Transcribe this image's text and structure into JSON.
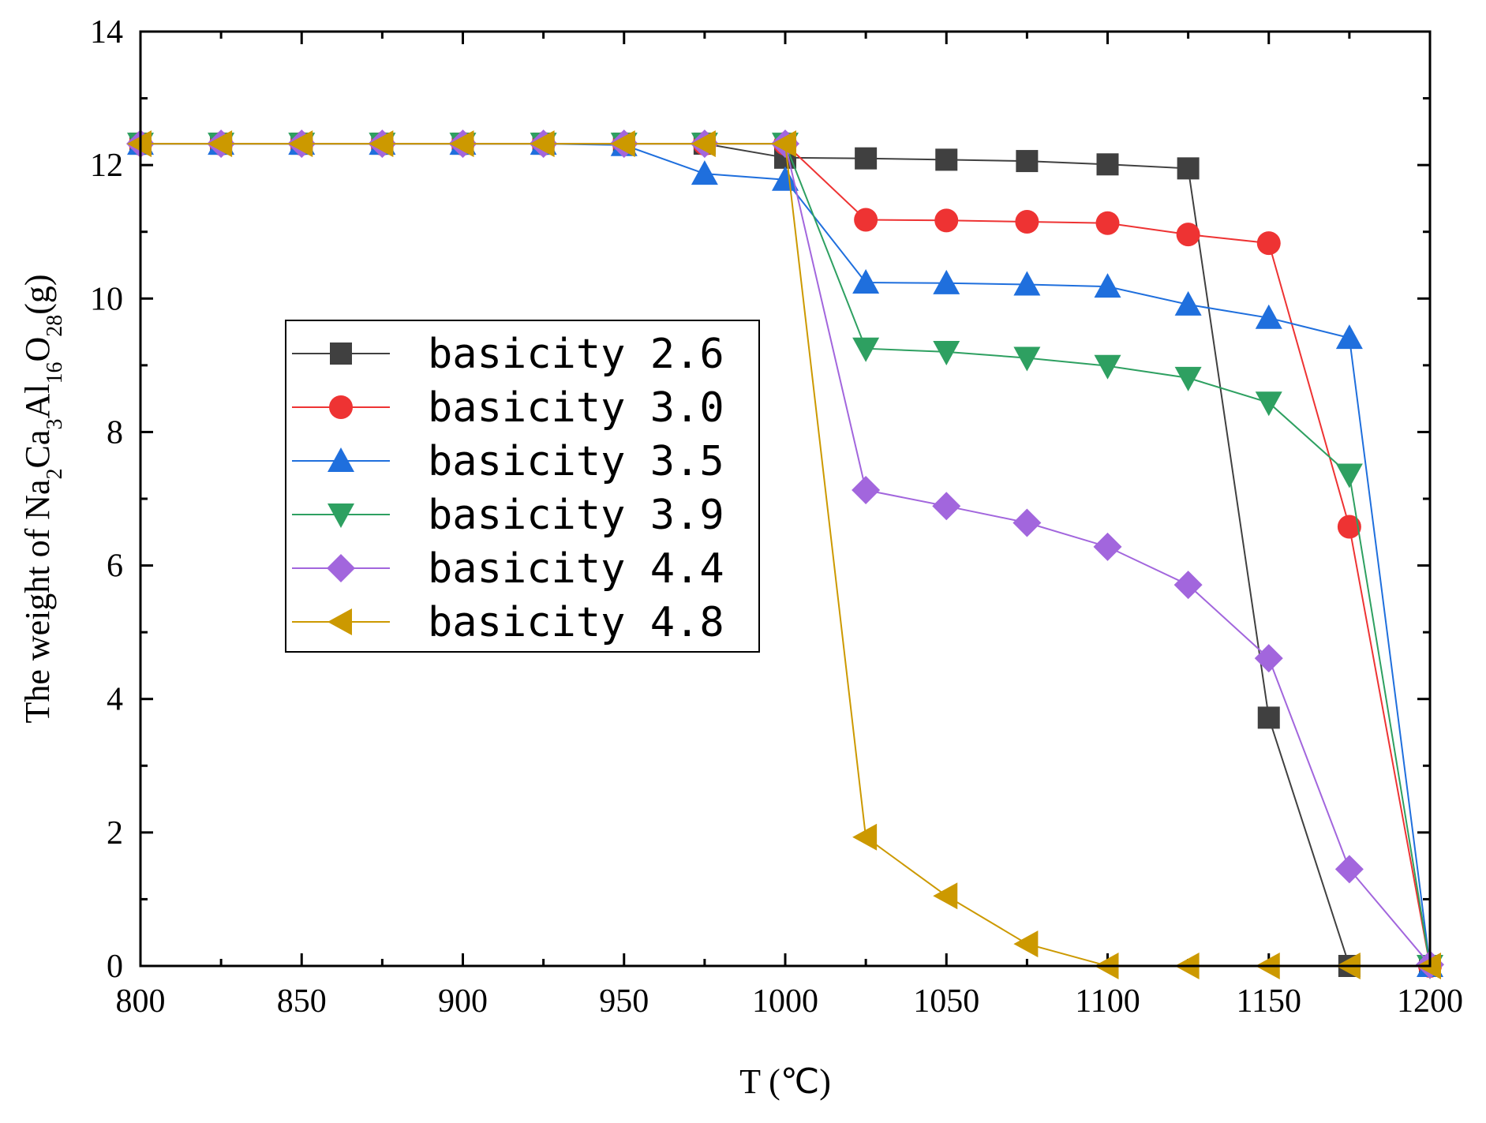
{
  "chart_data": {
    "type": "line",
    "xlabel": "T (℃)",
    "ylabel": {
      "parts": [
        {
          "text": "The weight of Na",
          "sub": false
        },
        {
          "text": "2",
          "sub": true
        },
        {
          "text": "Ca",
          "sub": false
        },
        {
          "text": "3",
          "sub": true
        },
        {
          "text": "Al",
          "sub": false
        },
        {
          "text": "16",
          "sub": true
        },
        {
          "text": "O",
          "sub": false
        },
        {
          "text": "28",
          "sub": true
        },
        {
          "text": "(g)",
          "sub": false
        }
      ]
    },
    "xlim": [
      800,
      1200
    ],
    "ylim": [
      0,
      14
    ],
    "xticks": [
      800,
      850,
      900,
      950,
      1000,
      1050,
      1100,
      1150,
      1200
    ],
    "yticks": [
      0,
      2,
      4,
      6,
      8,
      10,
      12,
      14
    ],
    "grid": false,
    "legend_position": "left-middle",
    "series": [
      {
        "name": "basicity 2.6",
        "color": "#404040",
        "marker": "square",
        "x": [
          800,
          825,
          850,
          875,
          900,
          925,
          950,
          975,
          1000,
          1025,
          1050,
          1075,
          1100,
          1125,
          1150,
          1175,
          1200
        ],
        "y": [
          12.32,
          12.32,
          12.32,
          12.32,
          12.32,
          12.32,
          12.32,
          12.32,
          12.11,
          12.1,
          12.08,
          12.06,
          12.01,
          11.95,
          3.72,
          0,
          0
        ]
      },
      {
        "name": "basicity 3.0",
        "color": "#ee3333",
        "marker": "circle",
        "x": [
          800,
          825,
          850,
          875,
          900,
          925,
          950,
          975,
          1000,
          1025,
          1050,
          1075,
          1100,
          1125,
          1150,
          1175,
          1200
        ],
        "y": [
          12.32,
          12.32,
          12.32,
          12.32,
          12.32,
          12.32,
          12.32,
          12.32,
          12.32,
          11.18,
          11.17,
          11.15,
          11.13,
          10.96,
          10.83,
          6.58,
          0
        ]
      },
      {
        "name": "basicity 3.5",
        "color": "#1f6fdd",
        "marker": "triangle-up",
        "x": [
          800,
          825,
          850,
          875,
          900,
          925,
          950,
          975,
          1000,
          1025,
          1050,
          1075,
          1100,
          1125,
          1150,
          1175,
          1200
        ],
        "y": [
          12.32,
          12.32,
          12.32,
          12.32,
          12.32,
          12.32,
          12.3,
          11.87,
          11.78,
          10.24,
          10.23,
          10.21,
          10.18,
          9.91,
          9.71,
          9.41,
          0
        ]
      },
      {
        "name": "basicity 3.9",
        "color": "#2ea061",
        "marker": "triangle-down",
        "x": [
          800,
          825,
          850,
          875,
          900,
          925,
          950,
          975,
          1000,
          1025,
          1050,
          1075,
          1100,
          1125,
          1150,
          1175,
          1200
        ],
        "y": [
          12.32,
          12.32,
          12.32,
          12.32,
          12.32,
          12.32,
          12.32,
          12.32,
          12.32,
          9.25,
          9.2,
          9.11,
          8.99,
          8.81,
          8.44,
          7.36,
          0
        ]
      },
      {
        "name": "basicity 4.4",
        "color": "#a266dd",
        "marker": "diamond",
        "x": [
          800,
          825,
          850,
          875,
          900,
          925,
          950,
          975,
          1000,
          1025,
          1050,
          1075,
          1100,
          1125,
          1150,
          1175,
          1200
        ],
        "y": [
          12.32,
          12.32,
          12.32,
          12.32,
          12.32,
          12.32,
          12.32,
          12.32,
          12.32,
          7.13,
          6.89,
          6.64,
          6.28,
          5.71,
          4.61,
          1.45,
          0.02
        ]
      },
      {
        "name": "basicity 4.8",
        "color": "#cc9900",
        "marker": "triangle-left",
        "x": [
          800,
          825,
          850,
          875,
          900,
          925,
          950,
          975,
          1000,
          1025,
          1050,
          1075,
          1100,
          1125,
          1150,
          1175,
          1200
        ],
        "y": [
          12.32,
          12.32,
          12.32,
          12.32,
          12.32,
          12.32,
          12.32,
          12.32,
          12.32,
          1.93,
          1.05,
          0.33,
          0,
          0,
          0,
          0,
          0
        ]
      }
    ]
  }
}
